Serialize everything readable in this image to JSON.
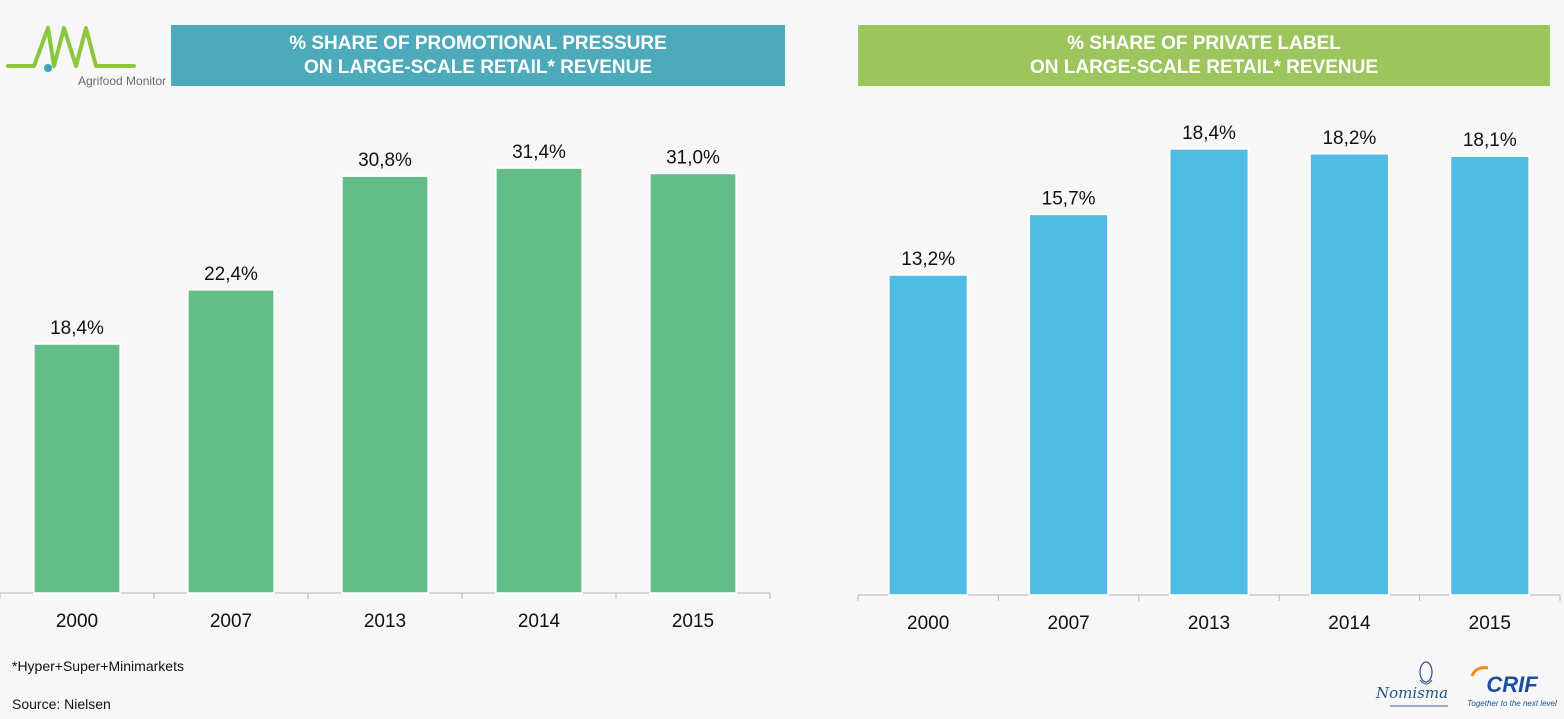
{
  "logo": {
    "text": "Agrifood Monitor"
  },
  "left": {
    "title_line1": "% SHARE OF PROMOTIONAL PRESSURE",
    "title_line2": "ON LARGE-SCALE RETAIL* REVENUE",
    "bar_color": "#63bd88",
    "header_color": "#4daabb"
  },
  "right": {
    "title_line1": "% SHARE OF PRIVATE LABEL",
    "title_line2": "ON LARGE-SCALE RETAIL* REVENUE",
    "bar_color": "#50bce3",
    "header_color": "#9dc55d"
  },
  "chart_data": [
    {
      "type": "bar",
      "title": "% SHARE OF PROMOTIONAL PRESSURE ON LARGE-SCALE RETAIL* REVENUE",
      "categories": [
        "2000",
        "2007",
        "2013",
        "2014",
        "2015"
      ],
      "values": [
        18.4,
        22.4,
        30.8,
        31.4,
        31.0
      ],
      "labels": [
        "18,4%",
        "22,4%",
        "30,8%",
        "31,4%",
        "31,0%"
      ],
      "ylim": [
        0,
        40
      ],
      "grid": false,
      "color": "#63bd88"
    },
    {
      "type": "bar",
      "title": "% SHARE OF PRIVATE LABEL ON LARGE-SCALE RETAIL* REVENUE",
      "categories": [
        "2000",
        "2007",
        "2013",
        "2014",
        "2015"
      ],
      "values": [
        13.2,
        15.7,
        18.4,
        18.2,
        18.1
      ],
      "labels": [
        "13,2%",
        "15,7%",
        "18,4%",
        "18,2%",
        "18,1%"
      ],
      "ylim": [
        0,
        20
      ],
      "grid": false,
      "color": "#50bce3"
    }
  ],
  "footnotes": {
    "note": "*Hyper+Super+Minimarkets",
    "source": "Source: Nielsen"
  },
  "brands": {
    "nomisma": "Nomisma",
    "crif": "CRIF",
    "crif_tagline": "Together to the next level"
  }
}
